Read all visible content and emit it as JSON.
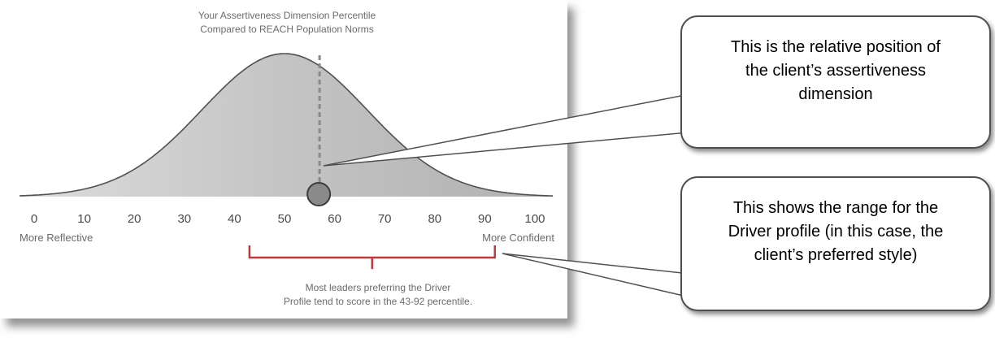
{
  "chart_data": {
    "type": "area",
    "title": "Your Assertiveness Dimension Percentile",
    "subtitle": "Compared to REACH Population Norms",
    "x_ticks": [
      0,
      10,
      20,
      30,
      40,
      50,
      60,
      70,
      80,
      90,
      100
    ],
    "xlim": [
      0,
      100
    ],
    "distribution": {
      "shape": "normal",
      "peak_x": 50
    },
    "left_label": "More Reflective",
    "right_label": "More Confident",
    "client_position": 57,
    "range": {
      "start": 43,
      "end": 92
    },
    "range_note_line1": "Most leaders preferring the Driver",
    "range_note_line2": "Profile tend to score in the 43-92 percentile.",
    "colors": {
      "curve_fill": "#bdbdbd",
      "curve_stroke": "#505050",
      "range_bracket": "#c0393b",
      "marker": "#8a8a8a"
    }
  },
  "callouts": [
    {
      "line1": "This is the relative position of",
      "line2": "the client’s assertiveness",
      "line3": "dimension"
    },
    {
      "line1": "This shows the range for the",
      "line2": "Driver profile (in this case, the",
      "line3": "client’s preferred style)"
    }
  ]
}
